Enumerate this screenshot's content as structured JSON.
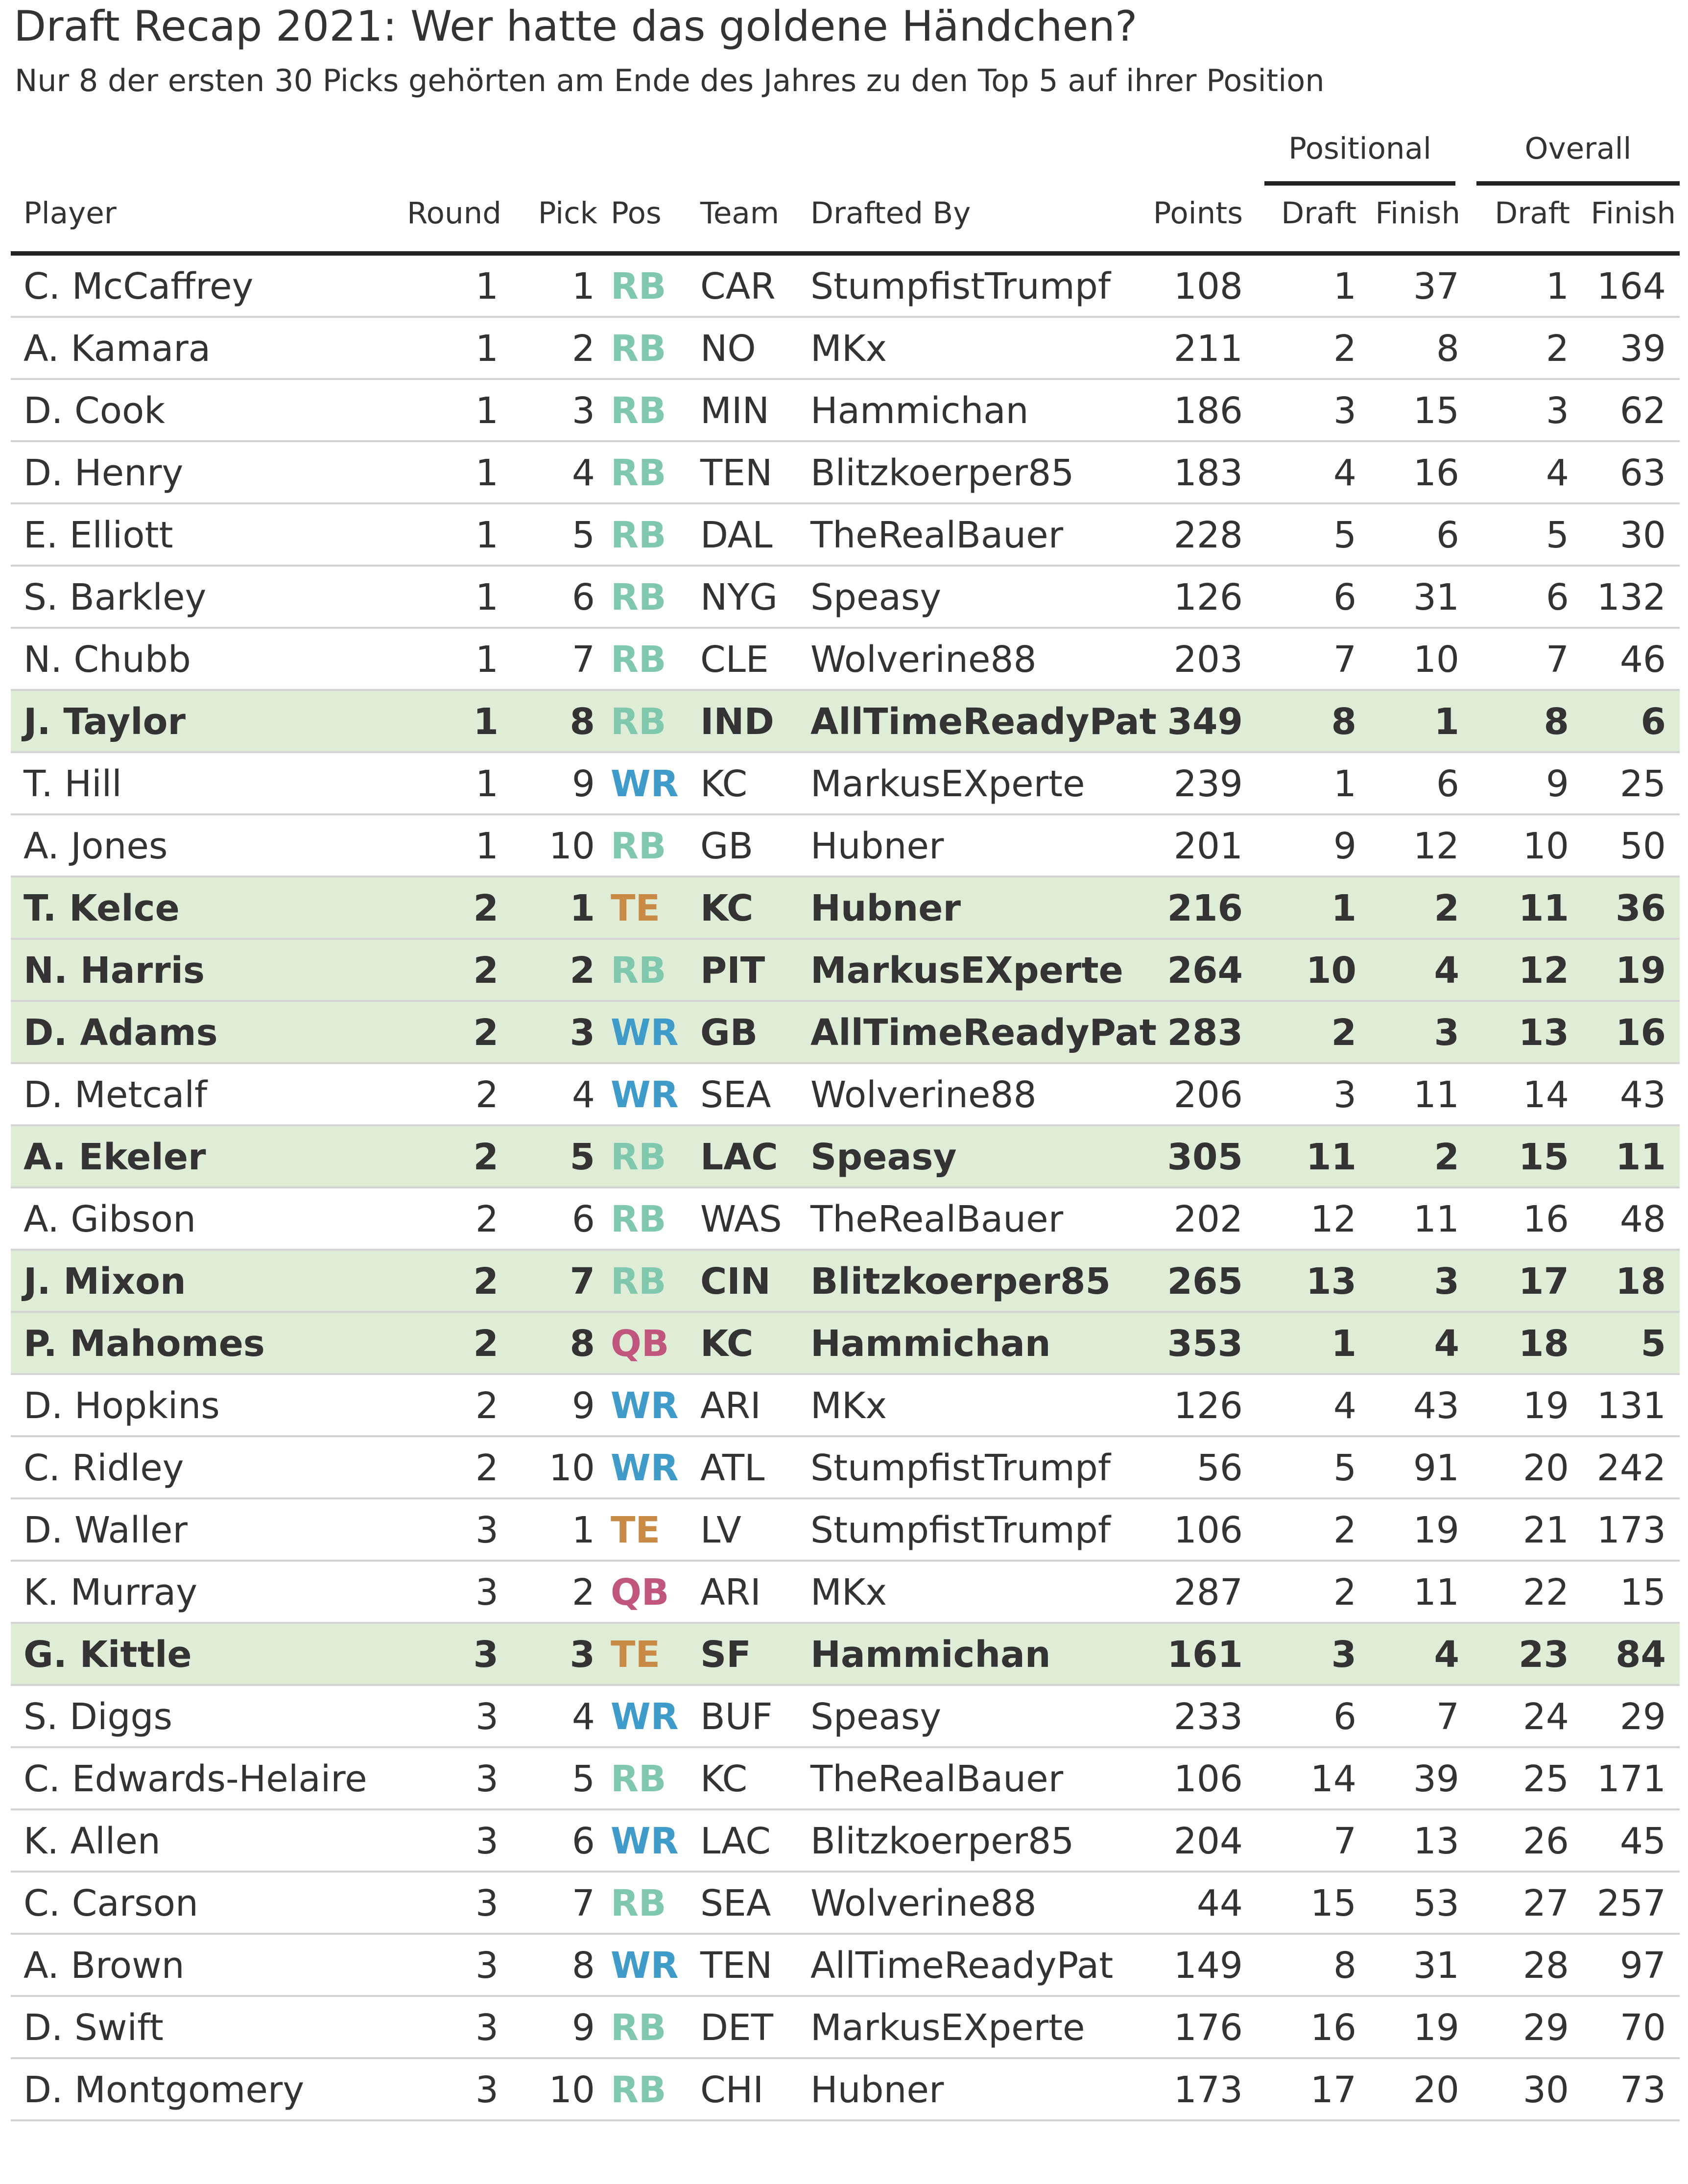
{
  "title": "Draft Recap 2021: Wer hatte das goldene Händchen?",
  "subtitle": "Nur 8 der ersten 30 Picks gehörten am Ende des Jahres zu den Top 5 auf ihrer Position",
  "column_groups": {
    "positional": "Positional",
    "overall": "Overall"
  },
  "columns": {
    "player": "Player",
    "round": "Round",
    "pick": "Pick",
    "pos": "Pos",
    "team": "Team",
    "drafted_by": "Drafted By",
    "points": "Points",
    "pos_draft": "Draft",
    "pos_finish": "Finish",
    "ov_draft": "Draft",
    "ov_finish": "Finish"
  },
  "colors": {
    "RB": "#7fc7ad",
    "WR": "#3f9bc9",
    "TE": "#c98a45",
    "QB": "#c0557e",
    "highlight_row": "#e0edd6"
  },
  "chart_data": {
    "type": "table",
    "title": "Draft Recap 2021: Wer hatte das goldene Händchen?",
    "subtitle": "Nur 8 der ersten 30 Picks gehörten am Ende des Jahres zu den Top 5 auf ihrer Position",
    "highlight_rule": "positional finish in top 5",
    "rows": [
      {
        "player": "C. McCaffrey",
        "round": "1",
        "pick": "1",
        "pos": "RB",
        "team": "CAR",
        "drafted_by": "StumpfistTrumpf",
        "points": "108",
        "pos_draft": "1",
        "pos_finish": "37",
        "ov_draft": "1",
        "ov_finish": "164",
        "highlight": false
      },
      {
        "player": "A. Kamara",
        "round": "1",
        "pick": "2",
        "pos": "RB",
        "team": "NO",
        "drafted_by": "MKx",
        "points": "211",
        "pos_draft": "2",
        "pos_finish": "8",
        "ov_draft": "2",
        "ov_finish": "39",
        "highlight": false
      },
      {
        "player": "D. Cook",
        "round": "1",
        "pick": "3",
        "pos": "RB",
        "team": "MIN",
        "drafted_by": "Hammichan",
        "points": "186",
        "pos_draft": "3",
        "pos_finish": "15",
        "ov_draft": "3",
        "ov_finish": "62",
        "highlight": false
      },
      {
        "player": "D. Henry",
        "round": "1",
        "pick": "4",
        "pos": "RB",
        "team": "TEN",
        "drafted_by": "Blitzkoerper85",
        "points": "183",
        "pos_draft": "4",
        "pos_finish": "16",
        "ov_draft": "4",
        "ov_finish": "63",
        "highlight": false
      },
      {
        "player": "E. Elliott",
        "round": "1",
        "pick": "5",
        "pos": "RB",
        "team": "DAL",
        "drafted_by": "TheRealBauer",
        "points": "228",
        "pos_draft": "5",
        "pos_finish": "6",
        "ov_draft": "5",
        "ov_finish": "30",
        "highlight": false
      },
      {
        "player": "S. Barkley",
        "round": "1",
        "pick": "6",
        "pos": "RB",
        "team": "NYG",
        "drafted_by": "Speasy",
        "points": "126",
        "pos_draft": "6",
        "pos_finish": "31",
        "ov_draft": "6",
        "ov_finish": "132",
        "highlight": false
      },
      {
        "player": "N. Chubb",
        "round": "1",
        "pick": "7",
        "pos": "RB",
        "team": "CLE",
        "drafted_by": "Wolverine88",
        "points": "203",
        "pos_draft": "7",
        "pos_finish": "10",
        "ov_draft": "7",
        "ov_finish": "46",
        "highlight": false
      },
      {
        "player": "J. Taylor",
        "round": "1",
        "pick": "8",
        "pos": "RB",
        "team": "IND",
        "drafted_by": "AllTimeReadyPat",
        "points": "349",
        "pos_draft": "8",
        "pos_finish": "1",
        "ov_draft": "8",
        "ov_finish": "6",
        "highlight": true
      },
      {
        "player": "T. Hill",
        "round": "1",
        "pick": "9",
        "pos": "WR",
        "team": "KC",
        "drafted_by": "MarkusEXperte",
        "points": "239",
        "pos_draft": "1",
        "pos_finish": "6",
        "ov_draft": "9",
        "ov_finish": "25",
        "highlight": false
      },
      {
        "player": "A. Jones",
        "round": "1",
        "pick": "10",
        "pos": "RB",
        "team": "GB",
        "drafted_by": "Hubner",
        "points": "201",
        "pos_draft": "9",
        "pos_finish": "12",
        "ov_draft": "10",
        "ov_finish": "50",
        "highlight": false
      },
      {
        "player": "T. Kelce",
        "round": "2",
        "pick": "1",
        "pos": "TE",
        "team": "KC",
        "drafted_by": "Hubner",
        "points": "216",
        "pos_draft": "1",
        "pos_finish": "2",
        "ov_draft": "11",
        "ov_finish": "36",
        "highlight": true
      },
      {
        "player": "N. Harris",
        "round": "2",
        "pick": "2",
        "pos": "RB",
        "team": "PIT",
        "drafted_by": "MarkusEXperte",
        "points": "264",
        "pos_draft": "10",
        "pos_finish": "4",
        "ov_draft": "12",
        "ov_finish": "19",
        "highlight": true
      },
      {
        "player": "D. Adams",
        "round": "2",
        "pick": "3",
        "pos": "WR",
        "team": "GB",
        "drafted_by": "AllTimeReadyPat",
        "points": "283",
        "pos_draft": "2",
        "pos_finish": "3",
        "ov_draft": "13",
        "ov_finish": "16",
        "highlight": true
      },
      {
        "player": "D. Metcalf",
        "round": "2",
        "pick": "4",
        "pos": "WR",
        "team": "SEA",
        "drafted_by": "Wolverine88",
        "points": "206",
        "pos_draft": "3",
        "pos_finish": "11",
        "ov_draft": "14",
        "ov_finish": "43",
        "highlight": false
      },
      {
        "player": "A. Ekeler",
        "round": "2",
        "pick": "5",
        "pos": "RB",
        "team": "LAC",
        "drafted_by": "Speasy",
        "points": "305",
        "pos_draft": "11",
        "pos_finish": "2",
        "ov_draft": "15",
        "ov_finish": "11",
        "highlight": true
      },
      {
        "player": "A. Gibson",
        "round": "2",
        "pick": "6",
        "pos": "RB",
        "team": "WAS",
        "drafted_by": "TheRealBauer",
        "points": "202",
        "pos_draft": "12",
        "pos_finish": "11",
        "ov_draft": "16",
        "ov_finish": "48",
        "highlight": false
      },
      {
        "player": "J. Mixon",
        "round": "2",
        "pick": "7",
        "pos": "RB",
        "team": "CIN",
        "drafted_by": "Blitzkoerper85",
        "points": "265",
        "pos_draft": "13",
        "pos_finish": "3",
        "ov_draft": "17",
        "ov_finish": "18",
        "highlight": true
      },
      {
        "player": "P. Mahomes",
        "round": "2",
        "pick": "8",
        "pos": "QB",
        "team": "KC",
        "drafted_by": "Hammichan",
        "points": "353",
        "pos_draft": "1",
        "pos_finish": "4",
        "ov_draft": "18",
        "ov_finish": "5",
        "highlight": true
      },
      {
        "player": "D. Hopkins",
        "round": "2",
        "pick": "9",
        "pos": "WR",
        "team": "ARI",
        "drafted_by": "MKx",
        "points": "126",
        "pos_draft": "4",
        "pos_finish": "43",
        "ov_draft": "19",
        "ov_finish": "131",
        "highlight": false
      },
      {
        "player": "C. Ridley",
        "round": "2",
        "pick": "10",
        "pos": "WR",
        "team": "ATL",
        "drafted_by": "StumpfistTrumpf",
        "points": "56",
        "pos_draft": "5",
        "pos_finish": "91",
        "ov_draft": "20",
        "ov_finish": "242",
        "highlight": false
      },
      {
        "player": "D. Waller",
        "round": "3",
        "pick": "1",
        "pos": "TE",
        "team": "LV",
        "drafted_by": "StumpfistTrumpf",
        "points": "106",
        "pos_draft": "2",
        "pos_finish": "19",
        "ov_draft": "21",
        "ov_finish": "173",
        "highlight": false
      },
      {
        "player": "K. Murray",
        "round": "3",
        "pick": "2",
        "pos": "QB",
        "team": "ARI",
        "drafted_by": "MKx",
        "points": "287",
        "pos_draft": "2",
        "pos_finish": "11",
        "ov_draft": "22",
        "ov_finish": "15",
        "highlight": false
      },
      {
        "player": "G. Kittle",
        "round": "3",
        "pick": "3",
        "pos": "TE",
        "team": "SF",
        "drafted_by": "Hammichan",
        "points": "161",
        "pos_draft": "3",
        "pos_finish": "4",
        "ov_draft": "23",
        "ov_finish": "84",
        "highlight": true
      },
      {
        "player": "S. Diggs",
        "round": "3",
        "pick": "4",
        "pos": "WR",
        "team": "BUF",
        "drafted_by": "Speasy",
        "points": "233",
        "pos_draft": "6",
        "pos_finish": "7",
        "ov_draft": "24",
        "ov_finish": "29",
        "highlight": false
      },
      {
        "player": "C. Edwards-Helaire",
        "round": "3",
        "pick": "5",
        "pos": "RB",
        "team": "KC",
        "drafted_by": "TheRealBauer",
        "points": "106",
        "pos_draft": "14",
        "pos_finish": "39",
        "ov_draft": "25",
        "ov_finish": "171",
        "highlight": false
      },
      {
        "player": "K. Allen",
        "round": "3",
        "pick": "6",
        "pos": "WR",
        "team": "LAC",
        "drafted_by": "Blitzkoerper85",
        "points": "204",
        "pos_draft": "7",
        "pos_finish": "13",
        "ov_draft": "26",
        "ov_finish": "45",
        "highlight": false
      },
      {
        "player": "C. Carson",
        "round": "3",
        "pick": "7",
        "pos": "RB",
        "team": "SEA",
        "drafted_by": "Wolverine88",
        "points": "44",
        "pos_draft": "15",
        "pos_finish": "53",
        "ov_draft": "27",
        "ov_finish": "257",
        "highlight": false
      },
      {
        "player": "A. Brown",
        "round": "3",
        "pick": "8",
        "pos": "WR",
        "team": "TEN",
        "drafted_by": "AllTimeReadyPat",
        "points": "149",
        "pos_draft": "8",
        "pos_finish": "31",
        "ov_draft": "28",
        "ov_finish": "97",
        "highlight": false
      },
      {
        "player": "D. Swift",
        "round": "3",
        "pick": "9",
        "pos": "RB",
        "team": "DET",
        "drafted_by": "MarkusEXperte",
        "points": "176",
        "pos_draft": "16",
        "pos_finish": "19",
        "ov_draft": "29",
        "ov_finish": "70",
        "highlight": false
      },
      {
        "player": "D. Montgomery",
        "round": "3",
        "pick": "10",
        "pos": "RB",
        "team": "CHI",
        "drafted_by": "Hubner",
        "points": "173",
        "pos_draft": "17",
        "pos_finish": "20",
        "ov_draft": "30",
        "ov_finish": "73",
        "highlight": false
      }
    ]
  }
}
